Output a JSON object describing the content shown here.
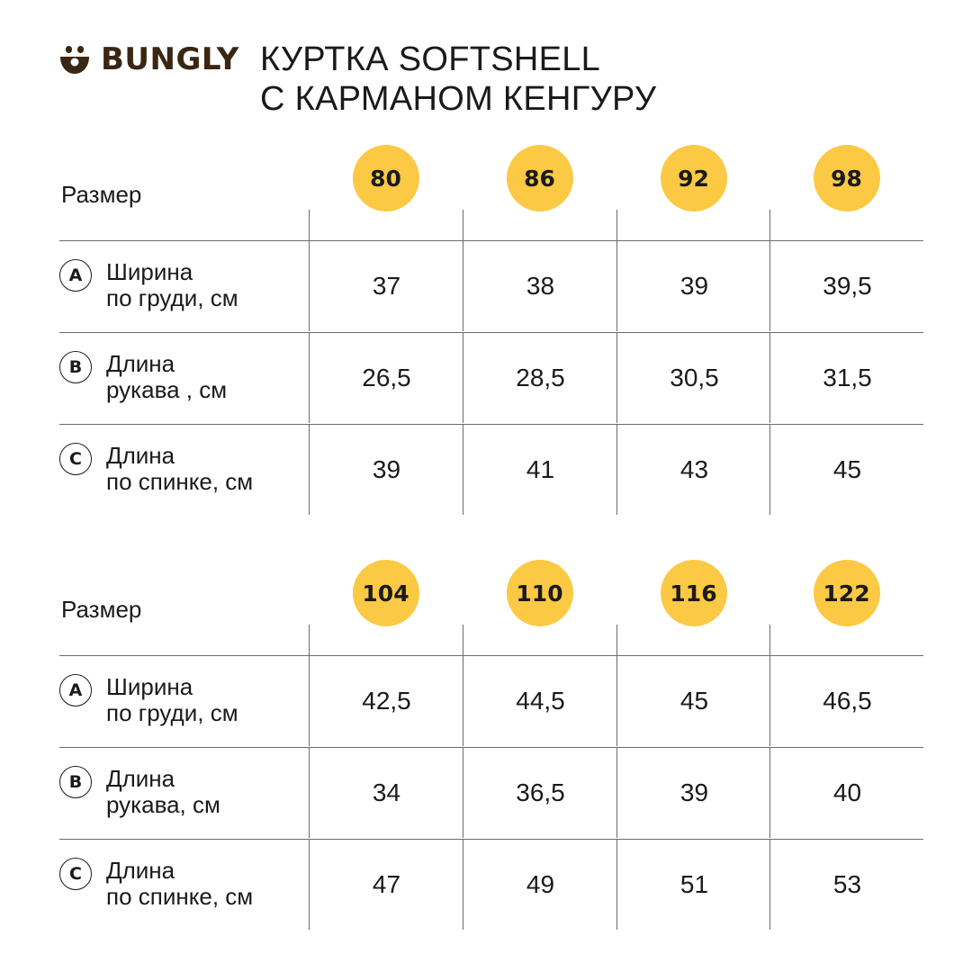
{
  "brand": {
    "name": "BUNGLY",
    "color": "#3a2613"
  },
  "title": {
    "line1": "КУРТКА SOFTSHELL",
    "line2": "С КАРМАНОМ КЕНГУРУ"
  },
  "accent_color": "#fcc944",
  "tables": [
    {
      "size_label": "Размер",
      "sizes": [
        "80",
        "86",
        "92",
        "98"
      ],
      "rows": [
        {
          "icon": "A",
          "label_line1": "Ширина",
          "label_line2": "по груди, см",
          "values": [
            "37",
            "38",
            "39",
            "39,5"
          ]
        },
        {
          "icon": "B",
          "label_line1": "Длина",
          "label_line2": "рукава , см",
          "values": [
            "26,5",
            "28,5",
            "30,5",
            "31,5"
          ]
        },
        {
          "icon": "C",
          "label_line1": "Длина",
          "label_line2": "по спинке, см",
          "values": [
            "39",
            "41",
            "43",
            "45"
          ]
        }
      ]
    },
    {
      "size_label": "Размер",
      "sizes": [
        "104",
        "110",
        "116",
        "122"
      ],
      "rows": [
        {
          "icon": "A",
          "label_line1": "Ширина",
          "label_line2": "по груди, см",
          "values": [
            "42,5",
            "44,5",
            "45",
            "46,5"
          ]
        },
        {
          "icon": "B",
          "label_line1": "Длина",
          "label_line2": "рукава, см",
          "values": [
            "34",
            "36,5",
            "39",
            "40"
          ]
        },
        {
          "icon": "C",
          "label_line1": "Длина",
          "label_line2": "по спинке, см",
          "values": [
            "47",
            "49",
            "51",
            "53"
          ]
        }
      ]
    }
  ]
}
